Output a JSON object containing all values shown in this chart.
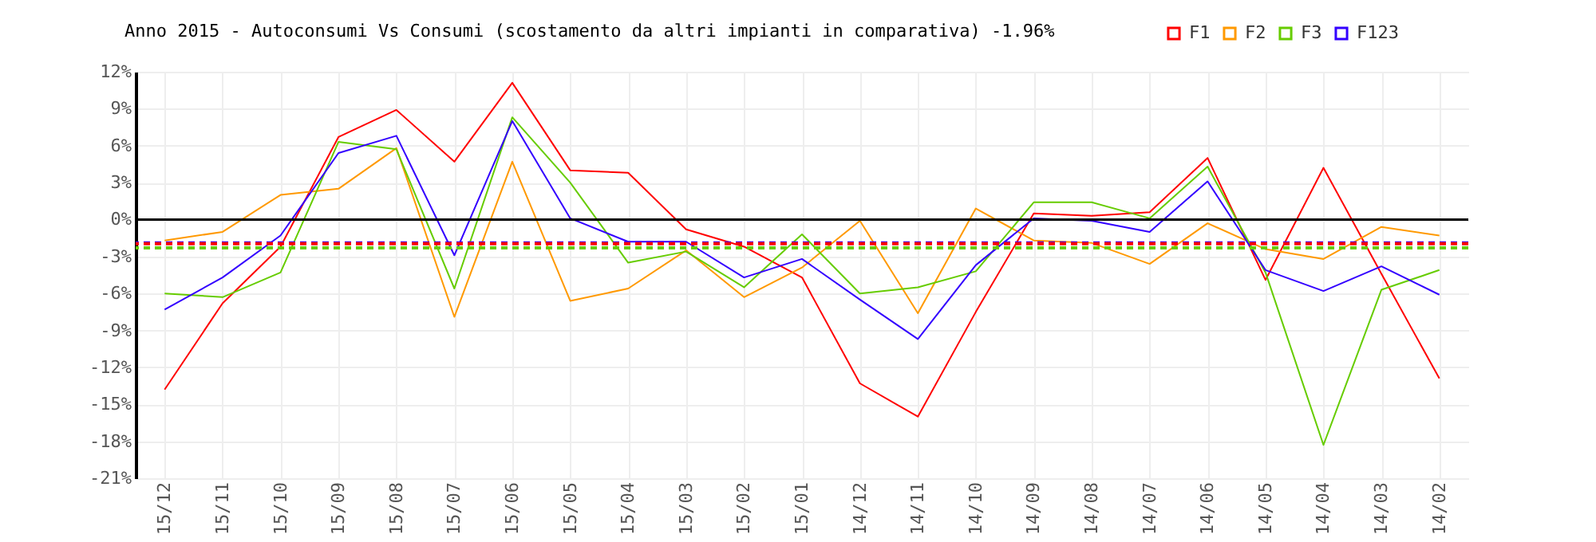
{
  "chart_data": {
    "type": "line",
    "title": "Anno 2015 - Autoconsumi Vs Consumi (scostamento da altri impianti in comparativa) -1.96%",
    "categories": [
      "15/12",
      "15/11",
      "15/10",
      "15/09",
      "15/08",
      "15/07",
      "15/06",
      "15/05",
      "15/04",
      "15/03",
      "15/02",
      "15/01",
      "14/12",
      "14/11",
      "14/10",
      "14/09",
      "14/08",
      "14/07",
      "14/06",
      "14/05",
      "14/04",
      "14/03",
      "14/02"
    ],
    "series": [
      {
        "name": "F1",
        "color": "#ff0000",
        "values": [
          -13.8,
          -6.8,
          -2.2,
          6.7,
          8.9,
          4.7,
          11.1,
          4.0,
          3.8,
          -0.8,
          -2.2,
          -4.7,
          -13.3,
          -16.0,
          -7.5,
          0.5,
          0.3,
          0.6,
          5.0,
          -4.9,
          4.2,
          -4.4,
          -12.9
        ]
      },
      {
        "name": "F2",
        "color": "#ff9900",
        "values": [
          -1.7,
          -1.0,
          2.0,
          2.5,
          5.8,
          -7.9,
          4.7,
          -6.6,
          -5.6,
          -2.5,
          -6.3,
          -3.9,
          -0.1,
          -7.6,
          0.9,
          -1.7,
          -1.9,
          -3.6,
          -0.3,
          -2.4,
          -3.2,
          -0.6,
          -1.3
        ]
      },
      {
        "name": "F3",
        "color": "#66cc00",
        "values": [
          -6.0,
          -6.3,
          -4.3,
          6.3,
          5.7,
          -5.6,
          8.3,
          3.0,
          -3.5,
          -2.6,
          -5.5,
          -1.2,
          -6.0,
          -5.5,
          -4.2,
          1.4,
          1.4,
          0.1,
          4.3,
          -4.3,
          -18.3,
          -5.7,
          -4.1
        ]
      },
      {
        "name": "F123",
        "color": "#3300ff",
        "values": [
          -7.3,
          -4.7,
          -1.3,
          5.4,
          6.8,
          -2.9,
          8.0,
          0.1,
          -1.8,
          -1.8,
          -4.7,
          -3.2,
          -6.5,
          -9.7,
          -3.7,
          0.1,
          -0.1,
          -1.0,
          3.1,
          -4.1,
          -5.8,
          -3.8,
          -6.1
        ]
      }
    ],
    "ylim": [
      -21,
      12
    ],
    "yticks": [
      {
        "value": 12,
        "label": "12%"
      },
      {
        "value": 9,
        "label": "9%"
      },
      {
        "value": 6,
        "label": "6%"
      },
      {
        "value": 3,
        "label": "3%"
      },
      {
        "value": 0,
        "label": "0%"
      },
      {
        "value": -3,
        "label": "-3%"
      },
      {
        "value": -6,
        "label": "-6%"
      },
      {
        "value": -9,
        "label": "-9%"
      },
      {
        "value": -12,
        "label": "-12%"
      },
      {
        "value": -15,
        "label": "-15%"
      },
      {
        "value": -18,
        "label": "-18%"
      },
      {
        "value": -21,
        "label": "-21%"
      }
    ],
    "ref_lines": [
      {
        "axis": "y",
        "value": 0,
        "color": "#000000",
        "line_style": "solid"
      },
      {
        "axis": "y",
        "value": -2.3,
        "color": "#66cc00",
        "line_style": "dashed"
      },
      {
        "axis": "y",
        "value": -1.9,
        "color": "#3300ff",
        "line_style": "dashed"
      },
      {
        "axis": "y",
        "value": -1.96,
        "color": "#ff0000",
        "line_style": "dashed"
      }
    ],
    "grid": true,
    "legend": "top right",
    "marker": "none",
    "line_style": "solid"
  }
}
